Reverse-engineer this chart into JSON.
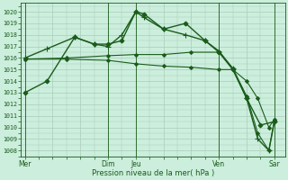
{
  "background_color": "#cceedd",
  "grid_color": "#aaccbb",
  "line_color": "#1a5c1a",
  "marker_color": "#1a5c1a",
  "xlabel": "Pression niveau de la mer( hPa )",
  "ylim": [
    1007.5,
    1020.8
  ],
  "yticks": [
    1008,
    1009,
    1010,
    1011,
    1012,
    1013,
    1014,
    1015,
    1016,
    1017,
    1018,
    1019,
    1020
  ],
  "xtick_labels": [
    "Mer",
    "",
    "",
    "Dim",
    "Jeu",
    "",
    "",
    "Ven",
    "",
    "Sar"
  ],
  "xtick_positions": [
    0,
    1,
    2,
    3,
    4,
    5,
    6,
    7,
    8,
    9
  ],
  "vlines": [
    0,
    3,
    4,
    7,
    9
  ],
  "series": [
    {
      "x": [
        0,
        0.8,
        1.8,
        2.5,
        3.0,
        3.5,
        4.0,
        4.3,
        5.0,
        5.8,
        6.5,
        7.0,
        7.5,
        8.0,
        8.5,
        9.0
      ],
      "y": [
        1013,
        1014,
        1017.8,
        1017.2,
        1017.2,
        1017.5,
        1020.0,
        1019.8,
        1018.5,
        1019.0,
        1017.5,
        1016.5,
        1015.0,
        1012.5,
        1010.2,
        1010.5
      ],
      "marker": "D",
      "markersize": 2.5,
      "linewidth": 1.0
    },
    {
      "x": [
        0,
        0.8,
        1.8,
        2.5,
        3.0,
        3.5,
        4.0,
        4.3,
        5.0,
        5.8,
        6.5,
        7.0,
        7.5,
        8.0,
        8.4,
        8.8,
        9.0
      ],
      "y": [
        1016.0,
        1016.8,
        1017.8,
        1017.2,
        1017.0,
        1018.0,
        1020.0,
        1019.5,
        1018.5,
        1018.0,
        1017.5,
        1016.6,
        1015.1,
        1012.5,
        1009.0,
        1008.0,
        1010.5
      ],
      "marker": "+",
      "markersize": 4,
      "linewidth": 1.0
    },
    {
      "x": [
        0,
        1.5,
        3.0,
        4.0,
        5.0,
        6.0,
        7.0,
        7.5,
        8.0,
        8.4,
        8.8,
        9.0
      ],
      "y": [
        1015.9,
        1016.0,
        1016.2,
        1016.3,
        1016.3,
        1016.5,
        1016.5,
        1015.1,
        1012.7,
        1009.5,
        1008.0,
        1010.7
      ],
      "marker": "D",
      "markersize": 2,
      "linewidth": 0.8
    },
    {
      "x": [
        0,
        1.5,
        3.0,
        4.0,
        5.0,
        6.0,
        7.0,
        7.5,
        8.0,
        8.4,
        8.8,
        9.0
      ],
      "y": [
        1015.9,
        1015.9,
        1015.8,
        1015.5,
        1015.3,
        1015.2,
        1015.0,
        1015.0,
        1014.0,
        1012.5,
        1010.0,
        1010.7
      ],
      "marker": "D",
      "markersize": 2,
      "linewidth": 0.8
    }
  ]
}
